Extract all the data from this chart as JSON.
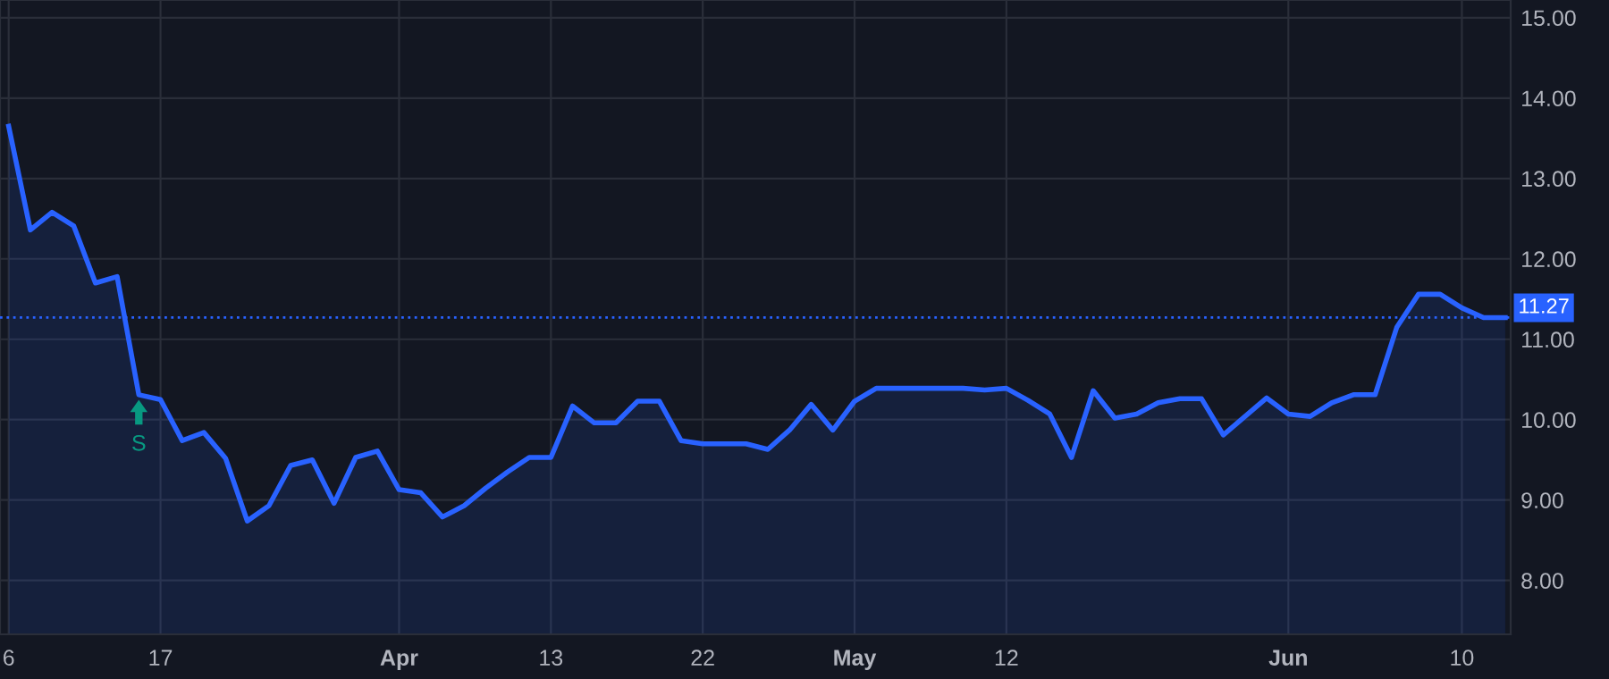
{
  "chart_data": {
    "type": "area",
    "categories": [
      "6",
      null,
      null,
      null,
      null,
      null,
      null,
      "17",
      null,
      null,
      null,
      null,
      null,
      null,
      null,
      null,
      null,
      null,
      "Apr",
      null,
      null,
      null,
      null,
      null,
      null,
      "13",
      null,
      null,
      null,
      null,
      null,
      null,
      "22",
      null,
      null,
      null,
      null,
      null,
      null,
      "May",
      null,
      null,
      null,
      null,
      null,
      null,
      "12",
      null,
      null,
      null,
      null,
      null,
      null,
      null,
      null,
      null,
      null,
      null,
      null,
      "Jun",
      null,
      null,
      null,
      null,
      null,
      null,
      null,
      "10",
      null,
      null
    ],
    "series": [
      {
        "color": "#2962ff",
        "values": [
          13.65,
          12.36,
          12.58,
          12.41,
          11.7,
          11.78,
          10.31,
          10.25,
          9.74,
          9.84,
          9.52,
          8.74,
          8.93,
          9.43,
          9.5,
          8.96,
          9.53,
          9.61,
          9.13,
          9.09,
          8.79,
          8.93,
          9.15,
          9.35,
          9.53,
          9.53,
          10.17,
          9.96,
          9.96,
          10.23,
          10.23,
          9.74,
          9.7,
          9.7,
          9.7,
          9.63,
          9.87,
          10.19,
          9.87,
          10.23,
          10.39,
          10.39,
          10.39,
          10.39,
          10.39,
          10.37,
          10.39,
          10.24,
          10.07,
          9.53,
          10.36,
          10.02,
          10.07,
          10.21,
          10.26,
          10.26,
          9.81,
          10.04,
          10.27,
          10.07,
          10.04,
          10.21,
          10.31,
          10.31,
          11.15,
          11.56,
          11.56,
          11.39,
          11.27,
          11.27
        ]
      }
    ],
    "ylim": [
      7.33,
      15.22
    ],
    "yticks": [
      {
        "value": 8,
        "label": "8.00"
      },
      {
        "value": 9,
        "label": "9.00"
      },
      {
        "value": 10,
        "label": "10.00"
      },
      {
        "value": 11,
        "label": "11.00"
      },
      {
        "value": 12,
        "label": "12.00"
      },
      {
        "value": 13,
        "label": "13.00"
      },
      {
        "value": 14,
        "label": "14.00"
      },
      {
        "value": 15,
        "label": "15.00"
      }
    ],
    "ref_lines": [
      {
        "axis": "y",
        "value": 11.27,
        "label": "11.27",
        "color": "#2962ff",
        "line_style": "dotted"
      }
    ],
    "annotations": [
      {
        "text": "S",
        "y": 10.31
      }
    ],
    "grid": true,
    "marker": "none",
    "line_style": "solid"
  }
}
